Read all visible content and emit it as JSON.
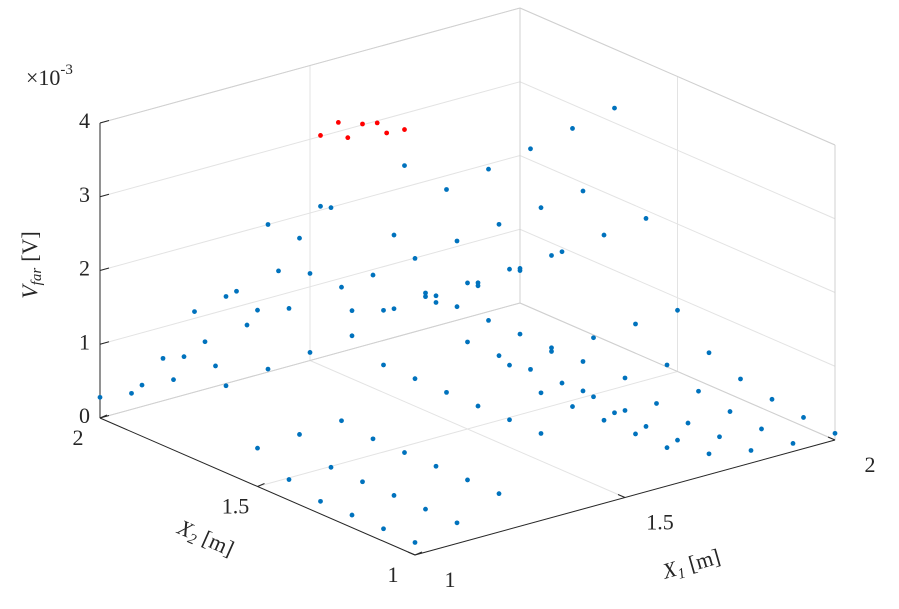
{
  "chart_data": {
    "type": "scatter3d",
    "zlabel": {
      "symbol": "V",
      "subscript": "far",
      "unit": "[V]"
    },
    "xlabel": {
      "symbol": "X",
      "subscript": "1",
      "unit": "[m]"
    },
    "ylabel": {
      "symbol": "X",
      "subscript": "2",
      "unit": "[m]"
    },
    "z_multiplier": {
      "base": "×10",
      "exponent": "-3"
    },
    "xlim": [
      1,
      2
    ],
    "ylim": [
      1,
      2
    ],
    "zlim": [
      0,
      4
    ],
    "xticks": [
      1,
      1.5,
      2
    ],
    "yticks": [
      1,
      1.5,
      2
    ],
    "zticks": [
      0,
      1,
      2,
      3,
      4
    ],
    "grid": true,
    "series": [
      {
        "color": "#0072BD",
        "x": [
          1,
          1.1,
          1.2,
          1.3,
          1.4,
          1.5,
          1.6,
          1.7,
          1.8,
          1.9,
          2,
          1,
          1.1,
          1.2,
          1.3,
          1.4,
          1.5,
          1.6,
          1.7,
          1.8,
          1.9,
          2,
          1,
          1.1,
          1.2,
          1.3,
          1.4,
          1.5,
          1.6,
          1.7,
          1.8,
          1.9,
          2,
          1,
          1.1,
          1.2,
          1.3,
          1.4,
          1.5,
          1.6,
          1.7,
          1.8,
          1.9,
          2,
          1,
          1.1,
          1.2,
          1.3,
          1.4,
          1.5,
          1.6,
          1.7,
          1.8,
          1.9,
          2,
          1,
          1.1,
          1.2,
          1.3,
          1.4,
          1.5,
          1.6,
          1.7,
          1.8,
          1.9,
          2,
          1,
          1.1,
          1.2,
          1.3,
          1.4,
          1.5,
          1.6,
          1.7,
          1.8,
          1.9,
          2,
          1,
          1.1,
          1.2,
          1.3,
          1.5,
          1.6,
          1.7,
          1.8,
          1.9,
          2,
          1,
          1.1,
          1.2,
          1.3,
          1.4,
          1.5,
          1.6,
          1.7,
          1.8,
          1.9,
          2,
          1,
          1.1,
          1.2,
          1.3,
          1.4,
          1.5,
          1.6,
          1.7,
          1.8,
          1.9,
          2,
          1,
          1.1,
          1.2,
          1.3,
          1.4,
          1.5,
          1.6,
          1.7,
          1.8,
          1.9,
          2
        ],
        "y": [
          1,
          1,
          1,
          1,
          1,
          1,
          1,
          1,
          1,
          1,
          1,
          1.1,
          1.1,
          1.1,
          1.1,
          1.1,
          1.1,
          1.1,
          1.1,
          1.1,
          1.1,
          1.1,
          1.2,
          1.2,
          1.2,
          1.2,
          1.2,
          1.2,
          1.2,
          1.2,
          1.2,
          1.2,
          1.2,
          1.3,
          1.3,
          1.3,
          1.3,
          1.3,
          1.3,
          1.3,
          1.3,
          1.3,
          1.3,
          1.3,
          1.4,
          1.4,
          1.4,
          1.4,
          1.4,
          1.4,
          1.4,
          1.4,
          1.4,
          1.4,
          1.4,
          1.5,
          1.5,
          1.5,
          1.5,
          1.5,
          1.5,
          1.5,
          1.5,
          1.5,
          1.5,
          1.5,
          1.6,
          1.6,
          1.6,
          1.6,
          1.6,
          1.6,
          1.6,
          1.6,
          1.6,
          1.6,
          1.6,
          1.7,
          1.7,
          1.7,
          1.7,
          1.7,
          1.7,
          1.7,
          1.7,
          1.7,
          1.7,
          1.8,
          1.8,
          1.8,
          1.8,
          1.8,
          1.8,
          1.8,
          1.8,
          1.8,
          1.8,
          1.8,
          1.9,
          1.9,
          1.9,
          1.9,
          1.9,
          1.9,
          1.9,
          1.9,
          1.9,
          1.9,
          1.9,
          2,
          2,
          2,
          2,
          2,
          2,
          2,
          2,
          2,
          2,
          2
        ],
        "z": [
          0.17,
          0.28,
          0.52,
          1.18,
          2,
          1.18,
          0.52,
          0.28,
          0.17,
          0.11,
          0.09,
          0.17,
          0.28,
          0.52,
          1.18,
          2,
          1.18,
          0.52,
          0.28,
          0.17,
          0.12,
          0.12,
          0.17,
          0.28,
          0.52,
          1.18,
          2,
          1.18,
          0.52,
          0.28,
          0.17,
          0.17,
          0.18,
          0.17,
          0.28,
          0.52,
          1.18,
          2,
          1.18,
          0.52,
          0.28,
          0.25,
          0.26,
          0.27,
          0.28,
          0.29,
          0.52,
          1.18,
          2,
          1.18,
          0.52,
          0.39,
          0.41,
          0.43,
          0.44,
          0.52,
          0.55,
          0.58,
          1.18,
          2,
          1.18,
          0.71,
          0.74,
          0.77,
          0.8,
          0.83,
          1.18,
          1.25,
          1.32,
          1.39,
          2.6,
          1.53,
          1.6,
          1.68,
          1.75,
          1.82,
          1.89,
          2,
          2.12,
          2.24,
          2.96,
          3.2,
          2.72,
          2.84,
          2.96,
          3.08,
          3.2,
          1.18,
          1.25,
          1.32,
          1.39,
          2.6,
          1.53,
          1.6,
          1.68,
          1.75,
          1.82,
          1.89,
          0.52,
          0.55,
          0.58,
          1.18,
          2,
          1.18,
          0.71,
          0.74,
          0.77,
          0.8,
          0.83,
          0.28,
          0.29,
          0.52,
          1.18,
          2,
          1.18,
          0.52,
          0.39,
          0.41,
          0.43,
          0.44
        ]
      },
      {
        "color": "#FF0000",
        "x": [
          1.4,
          1.35,
          1.45,
          1.38,
          1.42,
          1.33,
          1.47
        ],
        "y": [
          1.7,
          1.68,
          1.72,
          1.75,
          1.65,
          1.74,
          1.66
        ],
        "z": [
          3.92,
          3.85,
          3.82,
          3.88,
          3.86,
          3.8,
          3.81
        ]
      }
    ]
  }
}
